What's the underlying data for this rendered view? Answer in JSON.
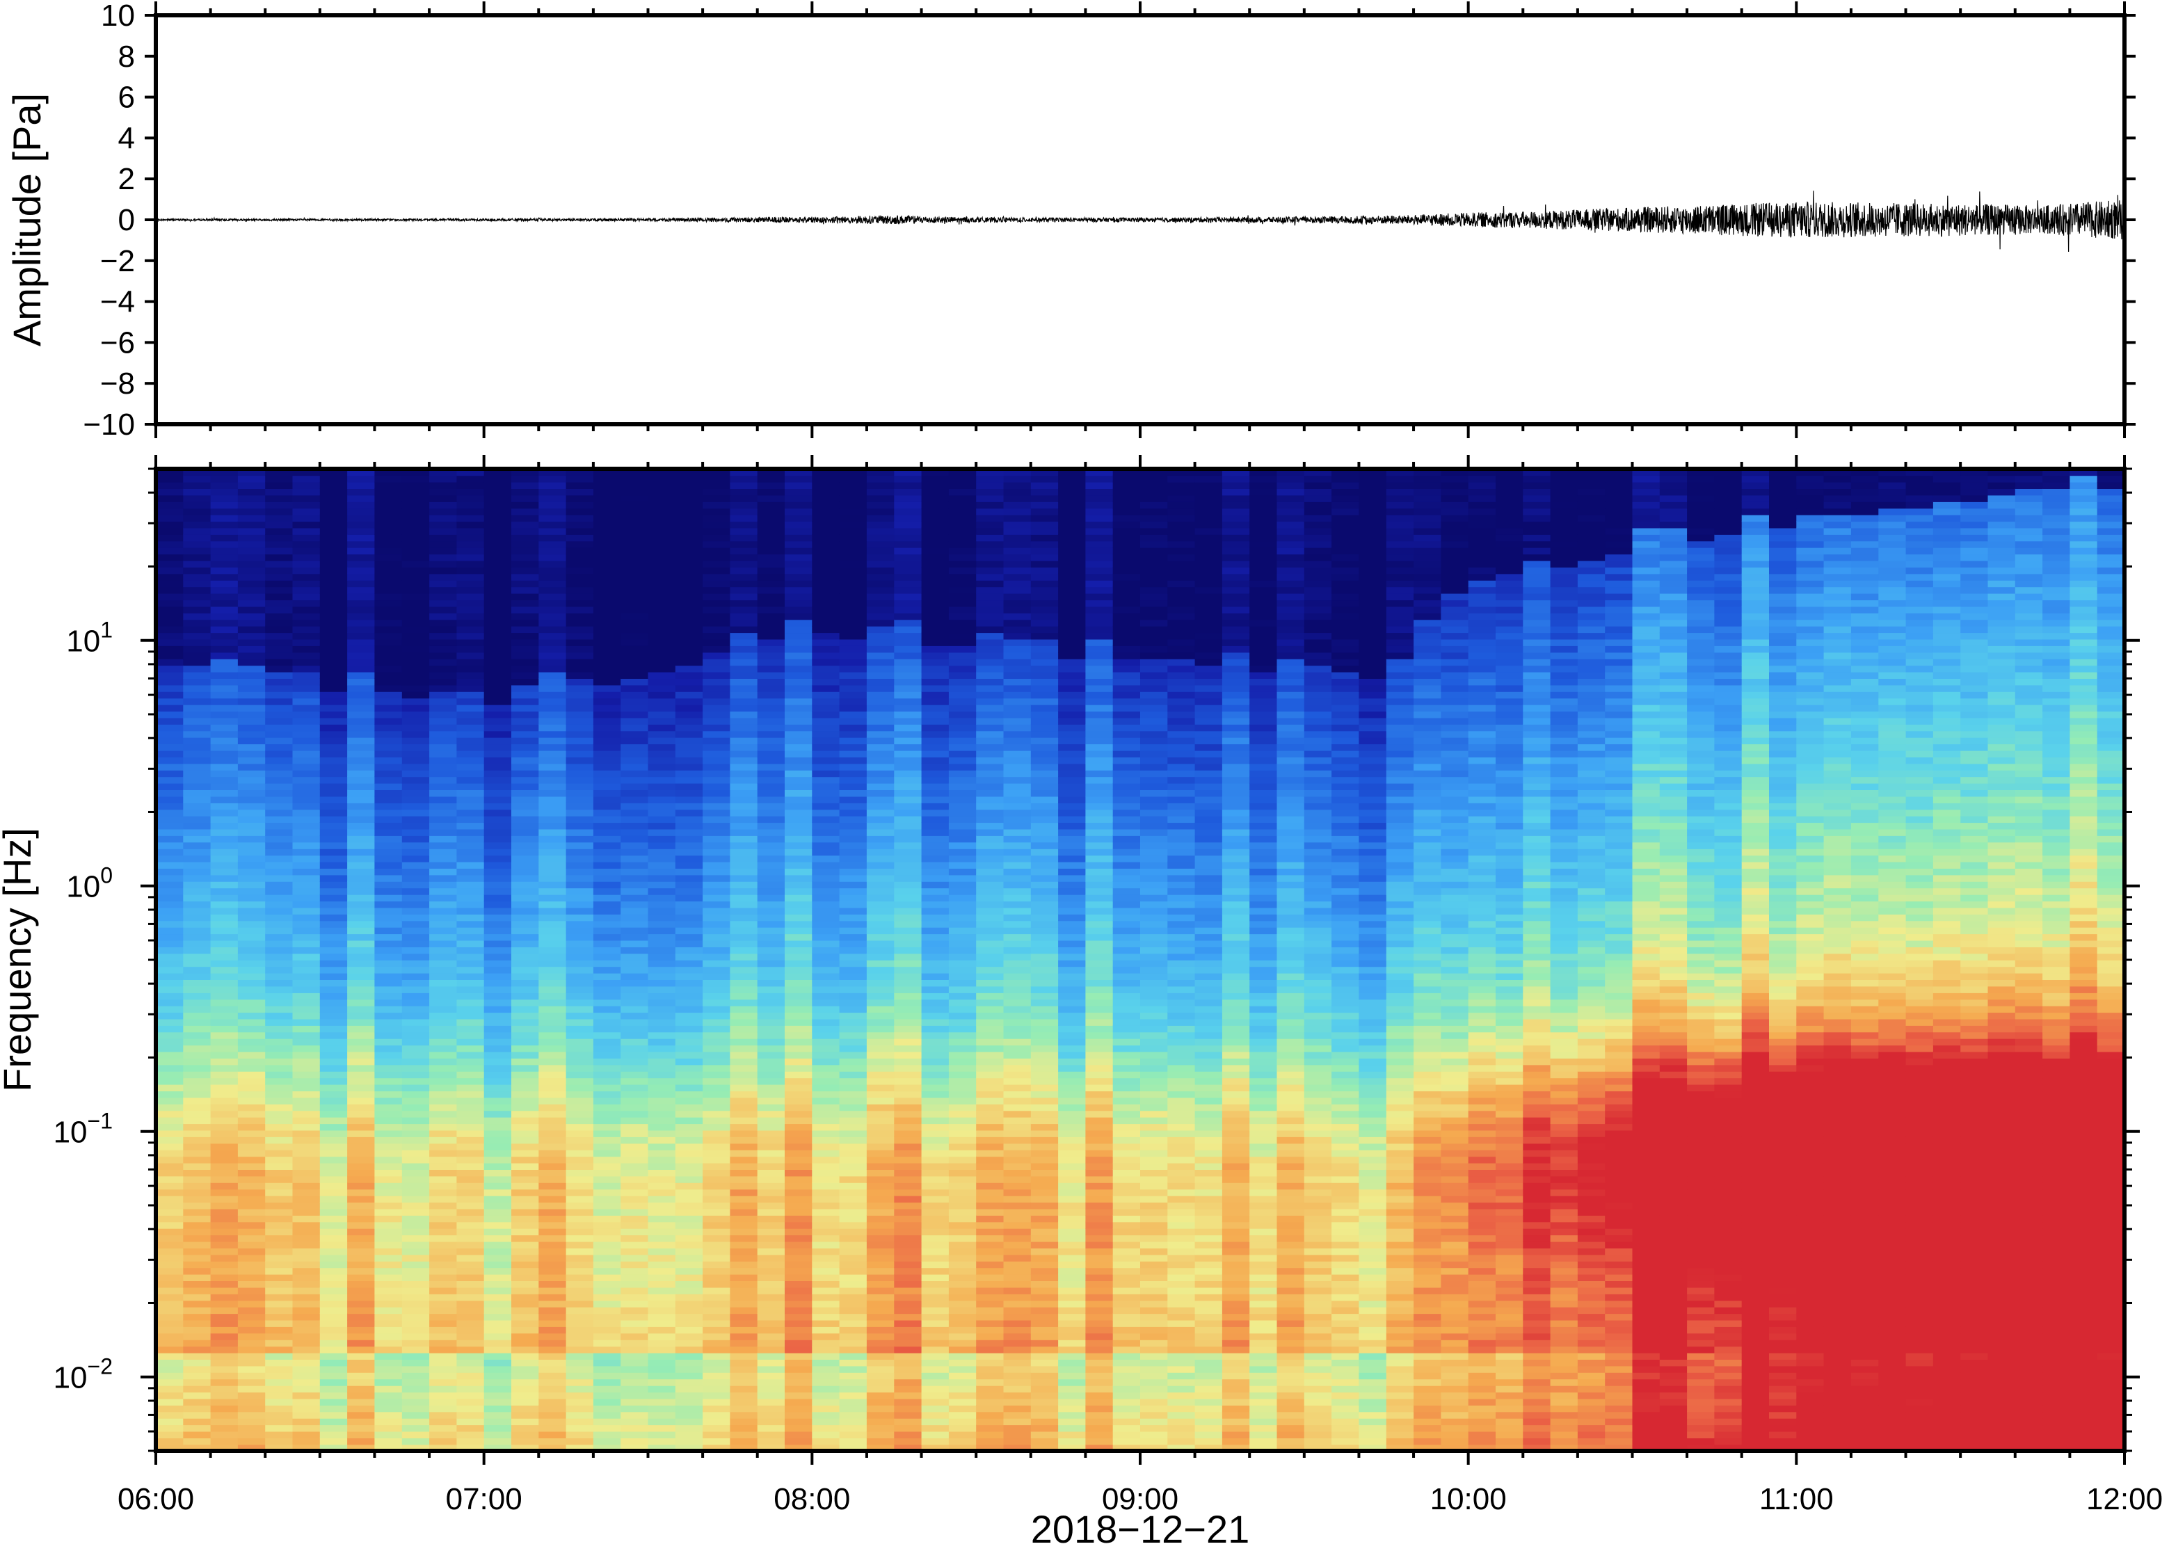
{
  "chart_data": [
    {
      "type": "line",
      "panel": "waveform",
      "ylabel": "Amplitude [Pa]",
      "ylim": [
        -10,
        10
      ],
      "yticks": [
        -10,
        -8,
        -6,
        -4,
        -2,
        0,
        2,
        4,
        6,
        8,
        10
      ],
      "ytick_labels": [
        "−10",
        "−8",
        "−6",
        "−4",
        "−2",
        "0",
        "2",
        "4",
        "6",
        "8",
        "10"
      ],
      "xlim": [
        "06:00",
        "12:00"
      ],
      "grid": false,
      "series": [
        {
          "x_hours": [
            6.0,
            6.5,
            7.0,
            7.5,
            8.0,
            8.25,
            8.5,
            9.0,
            9.5,
            9.8,
            10.0,
            10.25,
            10.5,
            10.75,
            11.0,
            11.25,
            11.5,
            11.75,
            12.0
          ],
          "envelope_pa": [
            0.05,
            0.05,
            0.06,
            0.07,
            0.15,
            0.22,
            0.12,
            0.1,
            0.15,
            0.22,
            0.35,
            0.45,
            0.6,
            0.75,
            0.9,
            0.85,
            0.8,
            0.7,
            1.0
          ],
          "peak_pa": [
            0.1,
            0.1,
            0.1,
            0.1,
            0.2,
            0.35,
            0.2,
            0.15,
            0.3,
            0.4,
            0.6,
            0.8,
            1.0,
            1.2,
            1.3,
            2.1,
            1.4,
            1.5,
            2.0
          ]
        }
      ]
    },
    {
      "type": "heatmap",
      "panel": "spectrogram",
      "ylabel": "Frequency [Hz]",
      "xlabel": "2018−12−21",
      "y_scale": "log",
      "ylim": [
        0.005,
        50
      ],
      "yticks": [
        0.01,
        0.1,
        1,
        10
      ],
      "ytick_labels": [
        {
          "base": "10",
          "exp": "−2"
        },
        {
          "base": "10",
          "exp": "−1"
        },
        {
          "base": "10",
          "exp": "0"
        },
        {
          "base": "10",
          "exp": "1"
        }
      ],
      "x_tick_labels": [
        "06:00",
        "07:00",
        "08:00",
        "09:00",
        "10:00",
        "11:00",
        "12:00"
      ],
      "xlim": [
        "06:00",
        "12:00"
      ],
      "colormap": "jet",
      "colors": {
        "low": "#0a0a6e",
        "mid_low": "#1e5adc",
        "mid": "#4ec8f0",
        "mid_high": "#a8eca0",
        "high_mid": "#f4ec88",
        "high": "#f5a04a",
        "peak": "#e84040"
      },
      "noise_edge_hz": [
        [
          6.0,
          8.0
        ],
        [
          6.5,
          7.0
        ],
        [
          7.0,
          6.0
        ],
        [
          7.5,
          8.0
        ],
        [
          8.0,
          12.0
        ],
        [
          8.5,
          10.0
        ],
        [
          9.0,
          9.0
        ],
        [
          9.5,
          8.0
        ],
        [
          9.8,
          8.0
        ],
        [
          10.0,
          18.0
        ],
        [
          10.5,
          25.0
        ],
        [
          11.0,
          32.0
        ],
        [
          11.5,
          38.0
        ],
        [
          12.0,
          45.0
        ]
      ],
      "intensity_profile": "quiet (blue) 06:00–09:50 with broadband increase after 09:50; strongest energy (red) 0.04–0.3 Hz between 10:45 and 12:00"
    }
  ]
}
